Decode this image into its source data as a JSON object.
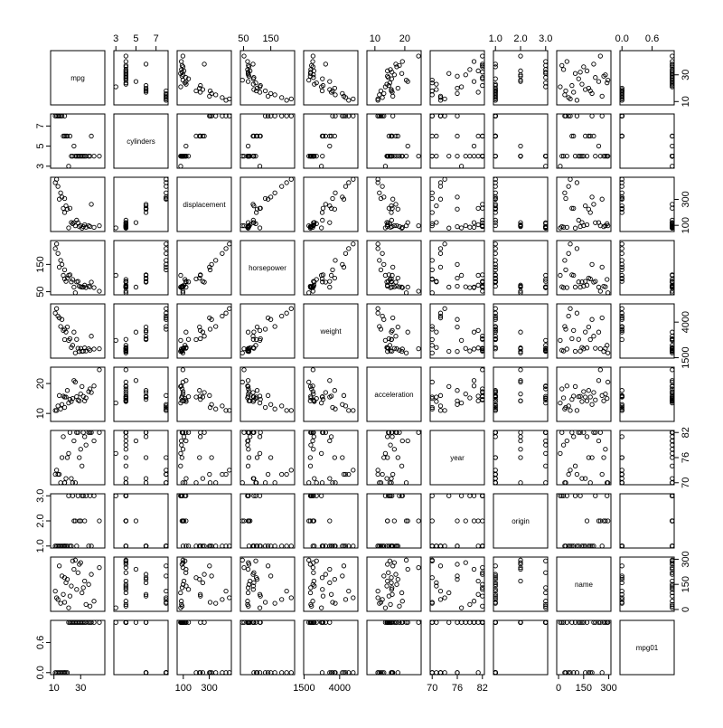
{
  "chart_data": {
    "type": "scatter",
    "title": "",
    "variables": [
      {
        "name": "mpg",
        "range": [
          9,
          46.6
        ],
        "ticks": [
          10,
          30
        ]
      },
      {
        "name": "cylinders",
        "range": [
          3,
          8
        ],
        "ticks": [
          3,
          5,
          7
        ]
      },
      {
        "name": "displacement",
        "range": [
          68,
          455
        ],
        "ticks": [
          100,
          300
        ]
      },
      {
        "name": "horsepower",
        "range": [
          46,
          230
        ],
        "ticks": [
          50,
          150
        ]
      },
      {
        "name": "weight",
        "range": [
          1613,
          5140
        ],
        "ticks": [
          1500,
          4000
        ]
      },
      {
        "name": "acceleration",
        "range": [
          8,
          24.8
        ],
        "ticks": [
          10,
          20
        ]
      },
      {
        "name": "year",
        "range": [
          70,
          82
        ],
        "ticks": [
          70,
          76,
          82
        ]
      },
      {
        "name": "origin",
        "range": [
          1,
          3
        ],
        "ticks": [
          "1.0",
          "2.0",
          "3.0"
        ]
      },
      {
        "name": "name",
        "range": [
          1,
          301
        ],
        "ticks": [
          0,
          150,
          300
        ]
      },
      {
        "name": "mpg01",
        "range": [
          0,
          1
        ],
        "ticks": [
          "0.0",
          "0.6"
        ]
      }
    ],
    "axis_labels_side": {
      "top": [
        "cylinders",
        "horsepower",
        "acceleration",
        "origin",
        "mpg01"
      ],
      "bottom": [
        "mpg",
        "displacement",
        "weight",
        "year",
        "name"
      ],
      "left": [
        "cylinders",
        "horsepower",
        "acceleration",
        "origin",
        "mpg01"
      ],
      "right": [
        "mpg",
        "displacement",
        "weight",
        "year",
        "name"
      ]
    },
    "sample_points": [
      {
        "mpg": 18,
        "cylinders": 8,
        "displacement": 307,
        "horsepower": 130,
        "weight": 3504,
        "acceleration": 12.0,
        "year": 70,
        "origin": 1,
        "name": 43,
        "mpg01": 0
      },
      {
        "mpg": 15,
        "cylinders": 8,
        "displacement": 350,
        "horsepower": 165,
        "weight": 3693,
        "acceleration": 11.5,
        "year": 70,
        "origin": 1,
        "name": 37,
        "mpg01": 0
      },
      {
        "mpg": 24,
        "cylinders": 4,
        "displacement": 113,
        "horsepower": 95,
        "weight": 2372,
        "acceleration": 15.0,
        "year": 70,
        "origin": 3,
        "name": 290,
        "mpg01": 1
      },
      {
        "mpg": 26,
        "cylinders": 4,
        "displacement": 97,
        "horsepower": 46,
        "weight": 1835,
        "acceleration": 20.5,
        "year": 70,
        "origin": 2,
        "name": 295,
        "mpg01": 1
      },
      {
        "mpg": 31,
        "cylinders": 4,
        "displacement": 79,
        "horsepower": 67,
        "weight": 1950,
        "acceleration": 19.0,
        "year": 74,
        "origin": 3,
        "name": 100,
        "mpg01": 1
      },
      {
        "mpg": 20,
        "cylinders": 6,
        "displacement": 225,
        "horsepower": 100,
        "weight": 3651,
        "acceleration": 17.7,
        "year": 76,
        "origin": 1,
        "name": 180,
        "mpg01": 0
      },
      {
        "mpg": 36,
        "cylinders": 4,
        "displacement": 98,
        "horsepower": 70,
        "weight": 2125,
        "acceleration": 17.3,
        "year": 82,
        "origin": 1,
        "name": 150,
        "mpg01": 1
      },
      {
        "mpg": 44,
        "cylinders": 4,
        "displacement": 97,
        "horsepower": 52,
        "weight": 2130,
        "acceleration": 24.6,
        "year": 82,
        "origin": 2,
        "name": 250,
        "mpg01": 1
      },
      {
        "mpg": 13,
        "cylinders": 8,
        "displacement": 400,
        "horsepower": 190,
        "weight": 4422,
        "acceleration": 12.5,
        "year": 72,
        "origin": 1,
        "name": 60,
        "mpg01": 0
      },
      {
        "mpg": 27,
        "cylinders": 4,
        "displacement": 140,
        "horsepower": 86,
        "weight": 2790,
        "acceleration": 15.6,
        "year": 82,
        "origin": 1,
        "name": 120,
        "mpg01": 1
      },
      {
        "mpg": 22,
        "cylinders": 6,
        "displacement": 232,
        "horsepower": 112,
        "weight": 2835,
        "acceleration": 14.7,
        "year": 82,
        "origin": 1,
        "name": 80,
        "mpg01": 1
      },
      {
        "mpg": 16,
        "cylinders": 8,
        "displacement": 318,
        "horsepower": 150,
        "weight": 4190,
        "acceleration": 13.0,
        "year": 76,
        "origin": 1,
        "name": 200,
        "mpg01": 0
      },
      {
        "mpg": 29,
        "cylinders": 4,
        "displacement": 90,
        "horsepower": 70,
        "weight": 1937,
        "acceleration": 14.2,
        "year": 76,
        "origin": 2,
        "name": 270,
        "mpg01": 1
      },
      {
        "mpg": 34,
        "cylinders": 4,
        "displacement": 86,
        "horsepower": 65,
        "weight": 1975,
        "acceleration": 15.2,
        "year": 79,
        "origin": 3,
        "name": 30,
        "mpg01": 1
      },
      {
        "mpg": 19,
        "cylinders": 6,
        "displacement": 250,
        "horsepower": 88,
        "weight": 3302,
        "acceleration": 15.5,
        "year": 71,
        "origin": 1,
        "name": 160,
        "mpg01": 0
      },
      {
        "mpg": 38,
        "cylinders": 6,
        "displacement": 262,
        "horsepower": 85,
        "weight": 3015,
        "acceleration": 17.0,
        "year": 82,
        "origin": 1,
        "name": 210,
        "mpg01": 1
      },
      {
        "mpg": 25,
        "cylinders": 5,
        "displacement": 121,
        "horsepower": 67,
        "weight": 3300,
        "acceleration": 21.0,
        "year": 80,
        "origin": 2,
        "name": 240,
        "mpg01": 1
      },
      {
        "mpg": 21,
        "cylinders": 3,
        "displacement": 80,
        "horsepower": 110,
        "weight": 2720,
        "acceleration": 13.5,
        "year": 77,
        "origin": 3,
        "name": 10,
        "mpg01": 1
      },
      {
        "mpg": 12,
        "cylinders": 8,
        "displacement": 455,
        "horsepower": 225,
        "weight": 4951,
        "acceleration": 11.0,
        "year": 73,
        "origin": 1,
        "name": 70,
        "mpg01": 0
      },
      {
        "mpg": 32,
        "cylinders": 4,
        "displacement": 91,
        "horsepower": 67,
        "weight": 1965,
        "acceleration": 15.7,
        "year": 82,
        "origin": 3,
        "name": 130,
        "mpg01": 1
      },
      {
        "mpg": 17,
        "cylinders": 6,
        "displacement": 231,
        "horsepower": 110,
        "weight": 3415,
        "acceleration": 15.8,
        "year": 81,
        "origin": 1,
        "name": 90,
        "mpg01": 0
      },
      {
        "mpg": 28,
        "cylinders": 4,
        "displacement": 120,
        "horsepower": 88,
        "weight": 2160,
        "acceleration": 14.5,
        "year": 82,
        "origin": 3,
        "name": 220,
        "mpg01": 1
      },
      {
        "mpg": 14,
        "cylinders": 8,
        "displacement": 302,
        "horsepower": 140,
        "weight": 4294,
        "acceleration": 16.0,
        "year": 72,
        "origin": 1,
        "name": 260,
        "mpg01": 0
      },
      {
        "mpg": 23,
        "cylinders": 4,
        "displacement": 122,
        "horsepower": 86,
        "weight": 2220,
        "acceleration": 14.0,
        "year": 71,
        "origin": 1,
        "name": 140,
        "mpg01": 1
      },
      {
        "mpg": 40,
        "cylinders": 4,
        "displacement": 85,
        "horsepower": 65,
        "weight": 2110,
        "acceleration": 19.2,
        "year": 80,
        "origin": 3,
        "name": 50,
        "mpg01": 1
      },
      {
        "mpg": 11,
        "cylinders": 8,
        "displacement": 429,
        "horsepower": 208,
        "weight": 4633,
        "acceleration": 11.0,
        "year": 72,
        "origin": 1,
        "name": 110,
        "mpg01": 0
      },
      {
        "mpg": 30,
        "cylinders": 4,
        "displacement": 98,
        "horsepower": 68,
        "weight": 2155,
        "acceleration": 16.5,
        "year": 78,
        "origin": 2,
        "name": 280,
        "mpg01": 1
      },
      {
        "mpg": 33,
        "cylinders": 4,
        "displacement": 105,
        "horsepower": 74,
        "weight": 2190,
        "acceleration": 14.2,
        "year": 81,
        "origin": 2,
        "name": 170,
        "mpg01": 1
      },
      {
        "mpg": 18,
        "cylinders": 6,
        "displacement": 199,
        "horsepower": 97,
        "weight": 2774,
        "acceleration": 15.5,
        "year": 70,
        "origin": 1,
        "name": 190,
        "mpg01": 0
      },
      {
        "mpg": 37,
        "cylinders": 4,
        "displacement": 91,
        "horsepower": 68,
        "weight": 2025,
        "acceleration": 18.2,
        "year": 82,
        "origin": 3,
        "name": 20,
        "mpg01": 1
      }
    ]
  }
}
